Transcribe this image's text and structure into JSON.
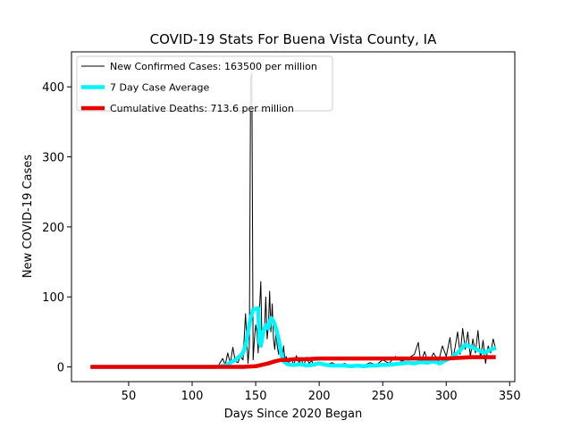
{
  "chart_data": {
    "type": "line",
    "title": "COVID-19 Stats For Buena Vista County, IA",
    "xlabel": "Days Since 2020 Began",
    "ylabel": "New COVID-19 Cases",
    "xlim": [
      5,
      354
    ],
    "ylim": [
      -21,
      450
    ],
    "xticks": [
      50,
      100,
      150,
      200,
      250,
      300,
      350
    ],
    "yticks": [
      0,
      100,
      200,
      300,
      400
    ],
    "grid": false,
    "legend_position": "top-left",
    "series": [
      {
        "name": "New Confirmed Cases: 163500 per million",
        "color": "#000000",
        "line_width": 1,
        "x": [
          20,
          40,
          60,
          80,
          100,
          110,
          120,
          124,
          126,
          128,
          130,
          132,
          134,
          136,
          138,
          140,
          142,
          144,
          145,
          146,
          147,
          148,
          149,
          150,
          151,
          152,
          153,
          154,
          155,
          156,
          157,
          158,
          159,
          160,
          161,
          162,
          163,
          164,
          165,
          166,
          167,
          168,
          169,
          170,
          171,
          172,
          173,
          174,
          175,
          176,
          178,
          180,
          182,
          184,
          186,
          188,
          190,
          192,
          194,
          196,
          198,
          200,
          205,
          210,
          215,
          220,
          225,
          230,
          235,
          240,
          245,
          250,
          255,
          260,
          265,
          270,
          275,
          278,
          280,
          283,
          286,
          290,
          294,
          297,
          300,
          303,
          305,
          307,
          309,
          311,
          313,
          315,
          317,
          319,
          321,
          323,
          325,
          327,
          329,
          331,
          333,
          335,
          337,
          339
        ],
        "y": [
          0,
          0,
          0,
          0,
          0,
          0,
          0,
          12,
          3,
          20,
          5,
          28,
          8,
          6,
          15,
          10,
          76,
          5,
          30,
          410,
          420,
          10,
          40,
          60,
          50,
          20,
          80,
          122,
          30,
          45,
          55,
          100,
          40,
          58,
          108,
          50,
          90,
          40,
          25,
          50,
          30,
          18,
          40,
          20,
          12,
          30,
          8,
          15,
          10,
          5,
          12,
          3,
          16,
          6,
          10,
          3,
          14,
          5,
          9,
          2,
          4,
          6,
          3,
          6,
          2,
          5,
          1,
          4,
          2,
          6,
          3,
          10,
          5,
          15,
          8,
          12,
          18,
          35,
          6,
          22,
          4,
          20,
          8,
          30,
          15,
          42,
          10,
          28,
          50,
          18,
          55,
          25,
          50,
          15,
          40,
          20,
          52,
          12,
          38,
          5,
          30,
          20,
          40,
          25
        ]
      },
      {
        "name": "7 Day Case Average",
        "color": "#00f5ff",
        "line_width": 4.5,
        "x": [
          20,
          60,
          100,
          120,
          126,
          130,
          134,
          138,
          140,
          142,
          144,
          146,
          148,
          150,
          152,
          153,
          154,
          156,
          158,
          160,
          162,
          164,
          166,
          168,
          170,
          172,
          175,
          178,
          182,
          186,
          190,
          195,
          200,
          205,
          210,
          215,
          220,
          225,
          230,
          235,
          240,
          245,
          250,
          255,
          260,
          265,
          270,
          275,
          280,
          285,
          290,
          295,
          300,
          305,
          310,
          315,
          320,
          325,
          330,
          335,
          339
        ],
        "y": [
          0,
          0,
          0,
          0,
          2,
          6,
          10,
          16,
          20,
          30,
          50,
          70,
          82,
          83,
          84,
          35,
          30,
          50,
          60,
          55,
          70,
          65,
          55,
          40,
          20,
          8,
          4,
          3,
          3,
          4,
          2,
          3,
          5,
          3,
          2,
          2,
          2,
          1,
          2,
          1,
          2,
          2,
          3,
          3,
          4,
          5,
          6,
          5,
          7,
          6,
          8,
          5,
          10,
          14,
          22,
          32,
          28,
          24,
          20,
          25,
          27
        ]
      },
      {
        "name": "Cumulative Deaths: 713.6 per million",
        "color": "#e80000",
        "line_width": 4.5,
        "x": [
          20,
          60,
          100,
          140,
          150,
          155,
          160,
          165,
          170,
          175,
          180,
          190,
          200,
          220,
          250,
          280,
          300,
          310,
          320,
          330,
          339
        ],
        "y": [
          0,
          0,
          0,
          0,
          1,
          3,
          5,
          8,
          10,
          10,
          11,
          11,
          12,
          12,
          12,
          12,
          12,
          13,
          14,
          14,
          14
        ]
      }
    ]
  }
}
